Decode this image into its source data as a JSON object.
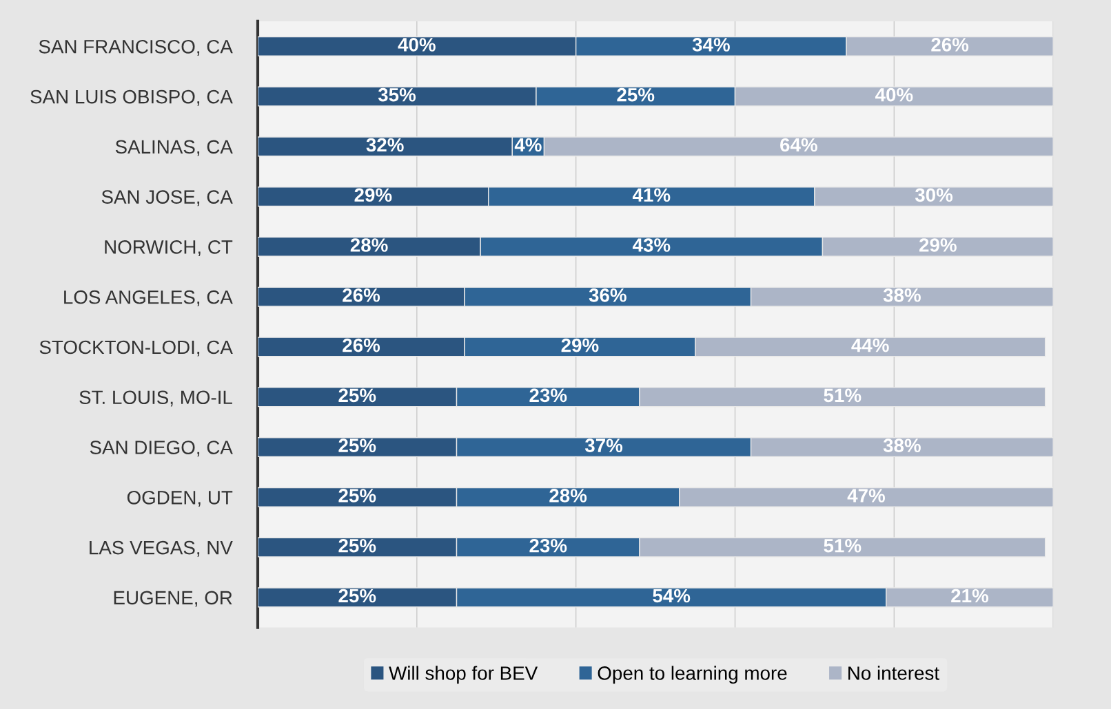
{
  "chart_data": {
    "type": "bar",
    "orientation": "horizontal",
    "stacked": true,
    "categories": [
      "SAN FRANCISCO, CA",
      "SAN LUIS OBISPO, CA",
      "SALINAS, CA",
      "SAN JOSE, CA",
      "NORWICH, CT",
      "LOS ANGELES, CA",
      "STOCKTON-LODI, CA",
      "ST. LOUIS, MO-IL",
      "SAN DIEGO, CA",
      "OGDEN, UT",
      "LAS VEGAS, NV",
      "EUGENE, OR"
    ],
    "series": [
      {
        "name": "Will shop for BEV",
        "color": "#2b5580",
        "values": [
          40,
          35,
          32,
          29,
          28,
          26,
          26,
          25,
          25,
          25,
          25,
          25
        ],
        "value_labels": [
          "40%",
          "35%",
          "32%",
          "29%",
          "28%",
          "26%",
          "26%",
          "25%",
          "25%",
          "25%",
          "25%",
          "25%"
        ]
      },
      {
        "name": "Open to learning more",
        "color": "#2f6596",
        "values": [
          34,
          25,
          4,
          41,
          43,
          36,
          29,
          23,
          37,
          28,
          23,
          54
        ],
        "value_labels": [
          "34%",
          "25%",
          "4%",
          "41%",
          "43%",
          "36%",
          "29%",
          "23%",
          "37%",
          "28%",
          "23%",
          "54%"
        ]
      },
      {
        "name": "No interest",
        "color": "#acb5c7",
        "values": [
          26,
          40,
          64,
          30,
          29,
          38,
          44,
          51,
          38,
          47,
          51,
          21
        ],
        "value_labels": [
          "26%",
          "40%",
          "64%",
          "30%",
          "29%",
          "38%",
          "44%",
          "51%",
          "38%",
          "47%",
          "51%",
          "21%"
        ]
      }
    ],
    "grid": "x",
    "legend": "bottom"
  }
}
